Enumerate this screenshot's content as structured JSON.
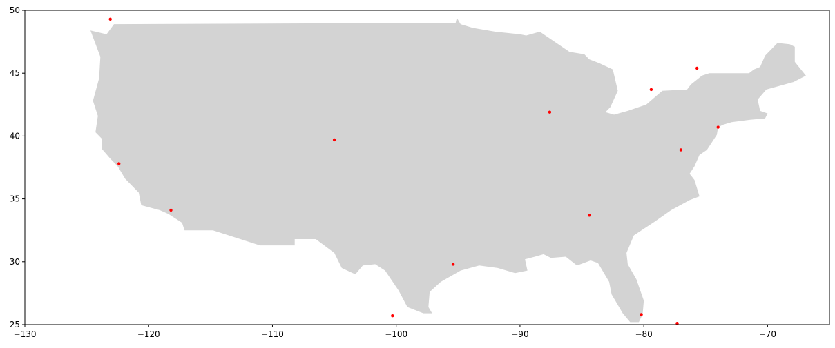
{
  "chart_data": {
    "type": "scatter",
    "title": "",
    "xlabel": "",
    "ylabel": "",
    "xlim": [
      -130,
      -65
    ],
    "ylim": [
      25,
      50
    ],
    "grid": false,
    "x_ticks": [
      -130,
      -120,
      -110,
      -100,
      -90,
      -80,
      -70
    ],
    "x_tick_labels": [
      "−130",
      "−120",
      "−110",
      "−100",
      "−90",
      "−80",
      "−70"
    ],
    "y_ticks": [
      25,
      30,
      35,
      40,
      45,
      50
    ],
    "y_tick_labels": [
      "25",
      "30",
      "35",
      "40",
      "45",
      "50"
    ],
    "land_color": "#d3d3d3",
    "point_color": "#ff0000",
    "points": [
      {
        "x": -123.1,
        "y": 49.3
      },
      {
        "x": -122.4,
        "y": 37.8
      },
      {
        "x": -118.2,
        "y": 34.1
      },
      {
        "x": -105.0,
        "y": 39.7
      },
      {
        "x": -100.3,
        "y": 25.7
      },
      {
        "x": -95.4,
        "y": 29.8
      },
      {
        "x": -87.6,
        "y": 41.9
      },
      {
        "x": -84.4,
        "y": 33.7
      },
      {
        "x": -79.4,
        "y": 43.7
      },
      {
        "x": -80.2,
        "y": 25.8
      },
      {
        "x": -77.0,
        "y": 38.9
      },
      {
        "x": -77.3,
        "y": 25.1
      },
      {
        "x": -74.0,
        "y": 40.7
      },
      {
        "x": -75.7,
        "y": 45.4
      }
    ],
    "land_outline": [
      [
        -124.7,
        48.4
      ],
      [
        -123.4,
        48.1
      ],
      [
        -122.8,
        48.9
      ],
      [
        -95.2,
        49.0
      ],
      [
        -95.1,
        49.4
      ],
      [
        -94.8,
        48.9
      ],
      [
        -93.8,
        48.6
      ],
      [
        -92.0,
        48.3
      ],
      [
        -90.0,
        48.1
      ],
      [
        -89.5,
        48.0
      ],
      [
        -88.4,
        48.3
      ],
      [
        -86.0,
        46.7
      ],
      [
        -84.8,
        46.5
      ],
      [
        -84.4,
        46.1
      ],
      [
        -83.6,
        45.8
      ],
      [
        -82.5,
        45.3
      ],
      [
        -82.1,
        43.6
      ],
      [
        -82.7,
        42.3
      ],
      [
        -83.1,
        41.9
      ],
      [
        -82.4,
        41.7
      ],
      [
        -81.3,
        42.0
      ],
      [
        -79.8,
        42.5
      ],
      [
        -79.1,
        43.1
      ],
      [
        -78.5,
        43.6
      ],
      [
        -76.5,
        43.7
      ],
      [
        -76.2,
        44.1
      ],
      [
        -75.3,
        44.8
      ],
      [
        -74.7,
        45.0
      ],
      [
        -71.5,
        45.0
      ],
      [
        -71.1,
        45.3
      ],
      [
        -70.6,
        45.5
      ],
      [
        -70.2,
        46.4
      ],
      [
        -69.2,
        47.4
      ],
      [
        -68.2,
        47.3
      ],
      [
        -67.8,
        47.1
      ],
      [
        -67.8,
        45.9
      ],
      [
        -66.9,
        44.8
      ],
      [
        -67.9,
        44.3
      ],
      [
        -70.1,
        43.7
      ],
      [
        -70.8,
        42.9
      ],
      [
        -70.6,
        42.0
      ],
      [
        -70.0,
        41.8
      ],
      [
        -70.2,
        41.4
      ],
      [
        -71.4,
        41.3
      ],
      [
        -72.9,
        41.1
      ],
      [
        -73.6,
        40.9
      ],
      [
        -74.0,
        40.7
      ],
      [
        -74.1,
        40.1
      ],
      [
        -74.9,
        38.9
      ],
      [
        -75.5,
        38.5
      ],
      [
        -75.9,
        37.6
      ],
      [
        -76.3,
        37.0
      ],
      [
        -75.9,
        36.5
      ],
      [
        -75.5,
        35.2
      ],
      [
        -76.3,
        34.9
      ],
      [
        -77.8,
        34.1
      ],
      [
        -79.1,
        33.2
      ],
      [
        -80.8,
        32.1
      ],
      [
        -81.4,
        30.7
      ],
      [
        -81.3,
        29.8
      ],
      [
        -80.6,
        28.6
      ],
      [
        -80.0,
        26.9
      ],
      [
        -80.1,
        25.8
      ],
      [
        -80.4,
        25.2
      ],
      [
        -81.1,
        25.2
      ],
      [
        -81.7,
        25.9
      ],
      [
        -82.6,
        27.4
      ],
      [
        -82.8,
        28.4
      ],
      [
        -83.7,
        29.9
      ],
      [
        -84.3,
        30.1
      ],
      [
        -85.4,
        29.7
      ],
      [
        -86.3,
        30.4
      ],
      [
        -87.5,
        30.3
      ],
      [
        -88.1,
        30.6
      ],
      [
        -88.8,
        30.4
      ],
      [
        -89.6,
        30.2
      ],
      [
        -89.4,
        29.3
      ],
      [
        -90.4,
        29.1
      ],
      [
        -91.8,
        29.5
      ],
      [
        -93.3,
        29.7
      ],
      [
        -94.8,
        29.3
      ],
      [
        -96.4,
        28.4
      ],
      [
        -97.3,
        27.6
      ],
      [
        -97.4,
        26.4
      ],
      [
        -97.1,
        25.9
      ],
      [
        -97.8,
        25.9
      ],
      [
        -99.1,
        26.4
      ],
      [
        -99.8,
        27.7
      ],
      [
        -100.9,
        29.3
      ],
      [
        -101.7,
        29.8
      ],
      [
        -102.7,
        29.7
      ],
      [
        -103.3,
        29.0
      ],
      [
        -104.4,
        29.5
      ],
      [
        -105.0,
        30.7
      ],
      [
        -106.5,
        31.8
      ],
      [
        -108.2,
        31.8
      ],
      [
        -108.2,
        31.3
      ],
      [
        -111.0,
        31.3
      ],
      [
        -114.8,
        32.5
      ],
      [
        -117.1,
        32.5
      ],
      [
        -117.3,
        33.1
      ],
      [
        -118.4,
        33.8
      ],
      [
        -119.1,
        34.1
      ],
      [
        -120.6,
        34.5
      ],
      [
        -120.8,
        35.5
      ],
      [
        -121.9,
        36.6
      ],
      [
        -122.5,
        37.6
      ],
      [
        -123.1,
        38.2
      ],
      [
        -123.8,
        39.0
      ],
      [
        -123.8,
        39.8
      ],
      [
        -124.3,
        40.3
      ],
      [
        -124.1,
        41.6
      ],
      [
        -124.5,
        42.8
      ],
      [
        -124.0,
        44.6
      ],
      [
        -123.9,
        46.3
      ],
      [
        -124.7,
        48.4
      ]
    ]
  }
}
